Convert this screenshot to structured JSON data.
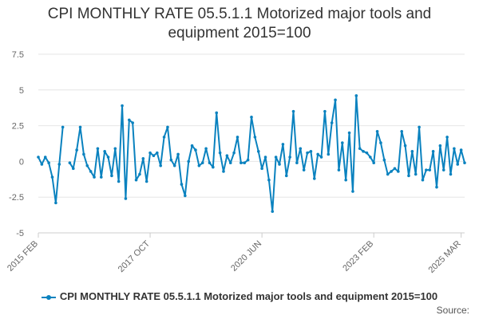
{
  "colors": {
    "series": "#0a82bf",
    "grid": "#e6e6e6",
    "text": "#333333",
    "axis": "#666666"
  },
  "source_label": "Source:",
  "chart_data": {
    "type": "line",
    "title_lines": [
      "CPI MONTHLY RATE 05.5.1.1 Motorized major tools and",
      "equipment 2015=100"
    ],
    "xlabel": "",
    "ylabel": "",
    "ylim": [
      -5,
      7.5
    ],
    "yticks": [
      -5,
      -2.5,
      0,
      2.5,
      5,
      7.5
    ],
    "ytick_labels": [
      "-5",
      "-2.5",
      "0",
      "2.5",
      "5",
      "7.5"
    ],
    "xtick_labels": [
      "2015 FEB",
      "2017 OCT",
      "2020 JUN",
      "2023 FEB",
      "2025 MAR"
    ],
    "xtick_index": [
      0,
      32,
      64,
      96,
      121
    ],
    "grid": true,
    "legend_position": "bottom",
    "series": [
      {
        "name": "CPI MONTHLY RATE 05.5.1.1 Motorized major tools and equipment 2015=100",
        "values": [
          0.3,
          -0.2,
          0.3,
          -0.1,
          -1.1,
          -2.9,
          -0.2,
          2.4,
          null,
          -0.1,
          -0.5,
          0.8,
          2.4,
          0.5,
          -0.3,
          -0.7,
          -1.1,
          0.9,
          -1.1,
          0.7,
          0.3,
          -1.0,
          0.9,
          -1.4,
          3.9,
          -2.6,
          2.9,
          2.7,
          -1.3,
          -0.9,
          0.2,
          -1.4,
          0.6,
          0.4,
          0.6,
          -0.3,
          1.7,
          2.4,
          0.1,
          -0.3,
          0.5,
          -1.6,
          -2.4,
          0.0,
          1.1,
          0.8,
          -0.3,
          -0.1,
          0.9,
          -0.1,
          -0.4,
          3.4,
          0.6,
          -0.7,
          0.4,
          -0.1,
          0.6,
          1.7,
          -0.1,
          -0.1,
          0.1,
          3.1,
          1.7,
          0.7,
          -0.5,
          0.3,
          -1.3,
          -3.5,
          0.3,
          -0.2,
          1.2,
          -1.0,
          0.3,
          3.5,
          -0.1,
          0.9,
          -0.6,
          0.6,
          0.7,
          -1.2,
          0.5,
          0.3,
          3.5,
          0.5,
          2.7,
          4.3,
          -0.6,
          1.3,
          -1.3,
          2.0,
          -2.1,
          4.6,
          0.9,
          0.7,
          0.6,
          0.3,
          -0.1,
          2.1,
          1.3,
          0.1,
          -0.9,
          -0.7,
          -0.5,
          -0.7,
          2.1,
          1.1,
          -1.0,
          0.7,
          -0.9,
          2.4,
          -1.3,
          -0.6,
          -0.6,
          0.7,
          -1.8,
          1.1,
          -0.6,
          1.7,
          -0.9,
          0.9,
          -0.2,
          0.8,
          -0.1
        ]
      }
    ]
  }
}
